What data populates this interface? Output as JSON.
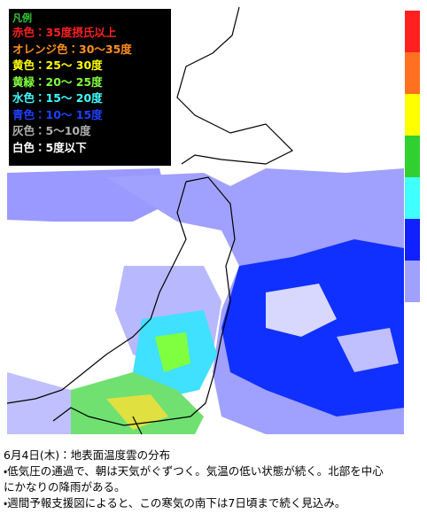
{
  "legend": {
    "title": "凡例",
    "items": [
      {
        "text": "赤色：35度摂氏以上",
        "color": "#ff2020"
      },
      {
        "text": "オレンジ色：30～35度",
        "color": "#ff9020"
      },
      {
        "text": "黄色：25～ 30度",
        "color": "#ffff00"
      },
      {
        "text": "黄緑：20～ 25度",
        "color": "#80ff40"
      },
      {
        "text": "水色：15～ 20度",
        "color": "#40ffff"
      },
      {
        "text": "青色：10～ 15度",
        "color": "#2040ff"
      },
      {
        "text": "灰色：5～10度",
        "color": "#b0b0b0"
      },
      {
        "text": "白色：5度以下",
        "color": "#ffffff"
      }
    ]
  },
  "caption": {
    "title": "6月4日(木)：地表面温度雲の分布",
    "lines": [
      "・低気圧の通過で、朝は天気がぐずつく。気温の低い状態が続く。北部を中心",
      "にかなりの降雨がある。",
      "・週間予報支援図によると、この寒気の南下は7日頃まで続く見込み。"
    ]
  }
}
